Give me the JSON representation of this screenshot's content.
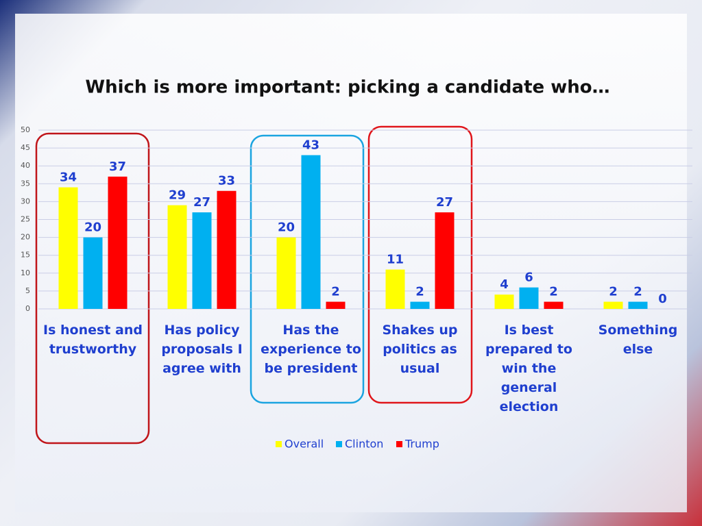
{
  "chart_data": {
    "type": "bar",
    "title": "Which is more important: picking a candidate who…",
    "categories": [
      "Is honest and trustworthy",
      "Has policy proposals I agree with",
      "Has the experience to be president",
      "Shakes up politics as usual",
      "Is best prepared to win the general election",
      "Something else"
    ],
    "series": [
      {
        "name": "Overall",
        "color": "#ffff00",
        "values": [
          34,
          29,
          20,
          11,
          4,
          2
        ]
      },
      {
        "name": "Clinton",
        "color": "#00b0f0",
        "values": [
          20,
          27,
          43,
          2,
          6,
          2
        ]
      },
      {
        "name": "Trump",
        "color": "#ff0000",
        "values": [
          37,
          33,
          2,
          27,
          2,
          0
        ]
      }
    ],
    "ylim": [
      0,
      50
    ],
    "yticks": [
      0,
      5,
      10,
      15,
      20,
      25,
      30,
      35,
      40,
      45,
      50
    ],
    "grid": true,
    "legend": "bottom"
  }
}
